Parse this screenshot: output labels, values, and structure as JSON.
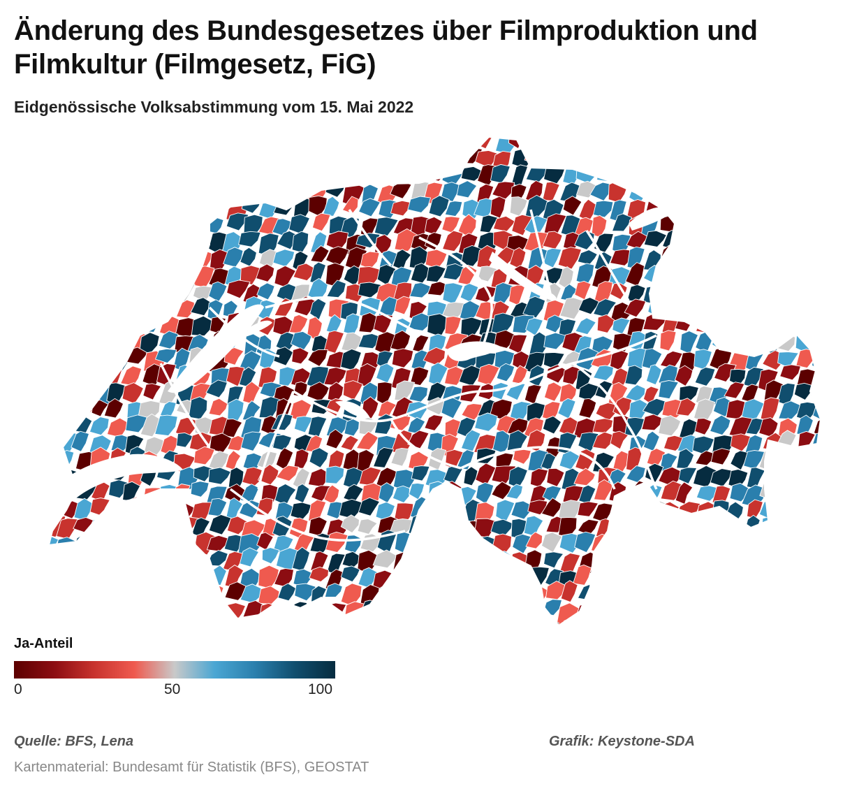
{
  "header": {
    "title": "Änderung des Bundesgesetzes über Filmproduktion und Filmkultur (Filmgesetz, FiG)",
    "subtitle": "Eidgenössische Volksabstimmung vom 15. Mai 2022"
  },
  "legend": {
    "title": "Ja-Anteil",
    "min_label": "0",
    "mid_label": "50",
    "max_label": "100",
    "colors": [
      "#5c0000",
      "#8c0d12",
      "#c8332e",
      "#ef5a4f",
      "#c9c9c9",
      "#4aa6d3",
      "#2a7fad",
      "#104e6e",
      "#062c40"
    ]
  },
  "footer": {
    "source": "Quelle: BFS, Lena",
    "credit": "Grafik: Keystone-SDA",
    "map_note": "Kartenmaterial: Bundesamt für Statistik (BFS), GEOSTAT"
  },
  "map": {
    "type": "choropleth",
    "region": "Switzerland",
    "unit": "Gemeinden",
    "value_scale": [
      0,
      100
    ],
    "lakes_color": "#ffffff"
  }
}
